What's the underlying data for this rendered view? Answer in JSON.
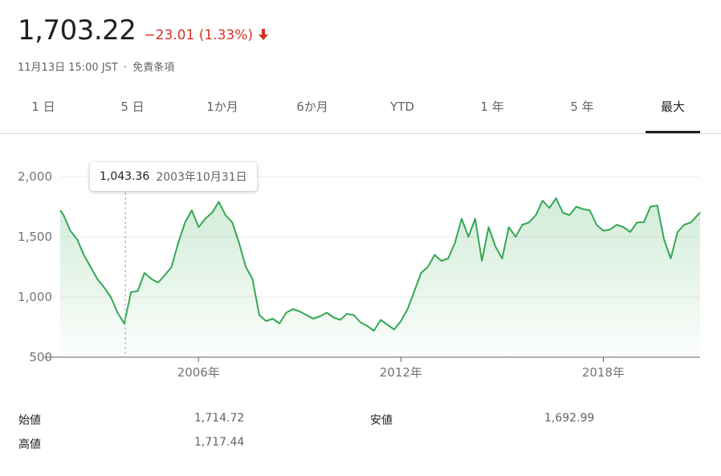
{
  "header": {
    "price": "1,703.22",
    "change": "−23.01 (1.33%)",
    "date": "11月13日 15:00 JST",
    "separator": "·",
    "disclaimer_link": "免責条項"
  },
  "tabs": [
    {
      "label": "1 日"
    },
    {
      "label": "5 日"
    },
    {
      "label": "1か月"
    },
    {
      "label": "6か月"
    },
    {
      "label": "YTD"
    },
    {
      "label": "1 年"
    },
    {
      "label": "5 年"
    },
    {
      "label": "最大",
      "active": true
    }
  ],
  "tooltip": {
    "value": "1,043.36",
    "date": "2003年10月31日"
  },
  "stats": {
    "open_label": "始値",
    "open_value": "1,714.72",
    "high_label": "高値",
    "high_value": "1,717.44",
    "low_label": "安値",
    "low_value": "1,692.99"
  },
  "colors": {
    "line": "#34a853",
    "negative": "#d93025",
    "grid": "#ebebeb"
  },
  "chart_data": {
    "type": "line",
    "ylim": [
      500,
      2000
    ],
    "xlim": [
      2001.9,
      2020.87
    ],
    "yticks": [
      500,
      1000,
      1500,
      2000
    ],
    "ytick_labels": [
      "500",
      "1,000",
      "1,500",
      "2,000"
    ],
    "xticks": [
      2006.0,
      2012.0,
      2018.0
    ],
    "xtick_labels": [
      "2006年",
      "2012年",
      "2018年"
    ],
    "grid": true,
    "hover_x": 2003.83,
    "series": [
      {
        "x": [
          2001.9,
          2002.0,
          2002.2,
          2002.4,
          2002.6,
          2002.8,
          2003.0,
          2003.2,
          2003.4,
          2003.6,
          2003.8,
          2004.0,
          2004.2,
          2004.4,
          2004.6,
          2004.8,
          2005.0,
          2005.2,
          2005.4,
          2005.6,
          2005.8,
          2006.0,
          2006.2,
          2006.4,
          2006.6,
          2006.8,
          2007.0,
          2007.2,
          2007.4,
          2007.6,
          2007.8,
          2008.0,
          2008.2,
          2008.4,
          2008.6,
          2008.8,
          2009.0,
          2009.2,
          2009.4,
          2009.6,
          2009.8,
          2010.0,
          2010.2,
          2010.4,
          2010.6,
          2010.8,
          2011.0,
          2011.2,
          2011.4,
          2011.6,
          2011.8,
          2012.0,
          2012.2,
          2012.4,
          2012.6,
          2012.8,
          2013.0,
          2013.2,
          2013.4,
          2013.6,
          2013.8,
          2014.0,
          2014.2,
          2014.4,
          2014.6,
          2014.8,
          2015.0,
          2015.2,
          2015.4,
          2015.6,
          2015.8,
          2016.0,
          2016.2,
          2016.4,
          2016.6,
          2016.8,
          2017.0,
          2017.2,
          2017.4,
          2017.6,
          2017.8,
          2018.0,
          2018.2,
          2018.4,
          2018.6,
          2018.8,
          2019.0,
          2019.2,
          2019.4,
          2019.6,
          2019.8,
          2020.0,
          2020.2,
          2020.4,
          2020.6,
          2020.87
        ],
        "values": [
          1720,
          1680,
          1550,
          1480,
          1350,
          1250,
          1150,
          1080,
          1000,
          870,
          780,
          1040,
          1050,
          1200,
          1150,
          1120,
          1180,
          1250,
          1450,
          1620,
          1720,
          1580,
          1650,
          1700,
          1790,
          1680,
          1620,
          1450,
          1250,
          1150,
          850,
          800,
          820,
          780,
          870,
          900,
          880,
          850,
          820,
          840,
          870,
          830,
          810,
          860,
          850,
          790,
          760,
          720,
          810,
          770,
          730,
          800,
          900,
          1050,
          1200,
          1250,
          1350,
          1300,
          1320,
          1450,
          1650,
          1500,
          1650,
          1300,
          1580,
          1420,
          1320,
          1580,
          1500,
          1600,
          1620,
          1680,
          1800,
          1740,
          1820,
          1700,
          1680,
          1750,
          1730,
          1720,
          1600,
          1550,
          1560,
          1600,
          1580,
          1540,
          1620,
          1620,
          1750,
          1760,
          1480,
          1320,
          1540,
          1600,
          1620,
          1703
        ]
      }
    ]
  }
}
